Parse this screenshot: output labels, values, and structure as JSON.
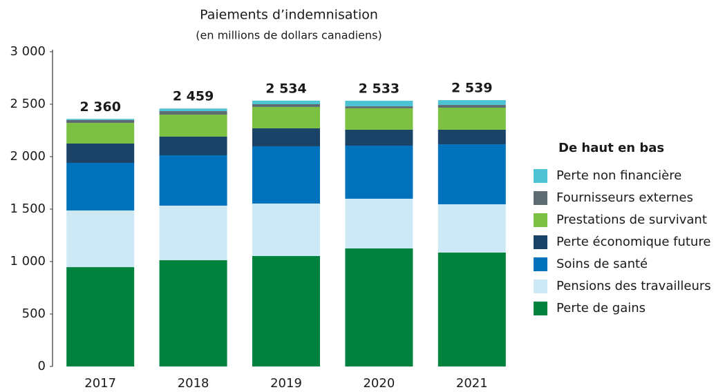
{
  "chart_data": {
    "type": "stacked_bar",
    "title": "Paiements d’indemnisation",
    "subtitle": "(en millions de dollars canadiens)",
    "categories": [
      "2017",
      "2018",
      "2019",
      "2020",
      "2021"
    ],
    "series": [
      {
        "name": "Perte de gains",
        "color": "#00823f",
        "values": [
          947,
          1013,
          1053,
          1125,
          1086
        ]
      },
      {
        "name": "Pensions des travailleurs",
        "color": "#cde9f6",
        "values": [
          540,
          520,
          500,
          474,
          460
        ]
      },
      {
        "name": "Soins de santé",
        "color": "#0072bc",
        "values": [
          454,
          480,
          546,
          506,
          572
        ]
      },
      {
        "name": "Perte économique future",
        "color": "#1b4368",
        "values": [
          184,
          178,
          171,
          152,
          139
        ]
      },
      {
        "name": "Prestations de survivant",
        "color": "#7dc142",
        "values": [
          197,
          210,
          204,
          204,
          210
        ]
      },
      {
        "name": "Fournisseurs externes",
        "color": "#5f6b73",
        "values": [
          27,
          33,
          26,
          19,
          26
        ]
      },
      {
        "name": "Perte non financière",
        "color": "#4dc3d3",
        "values": [
          11,
          25,
          34,
          53,
          46
        ]
      }
    ],
    "totals": [
      2360,
      2459,
      2534,
      2533,
      2539
    ],
    "total_labels": [
      "2 360",
      "2 459",
      "2 534",
      "2 533",
      "2 539"
    ],
    "legend_title": "De haut en bas",
    "ylim": [
      0,
      3000
    ],
    "yticks": [
      0,
      500,
      {
        "value": 1000,
        "label": "1 000"
      },
      {
        "value": 1500,
        "label": "1 500"
      },
      {
        "value": 2000,
        "label": "2 000"
      },
      {
        "value": 2500,
        "label": "2 500"
      },
      {
        "value": 3000,
        "label": "3 000"
      }
    ]
  }
}
